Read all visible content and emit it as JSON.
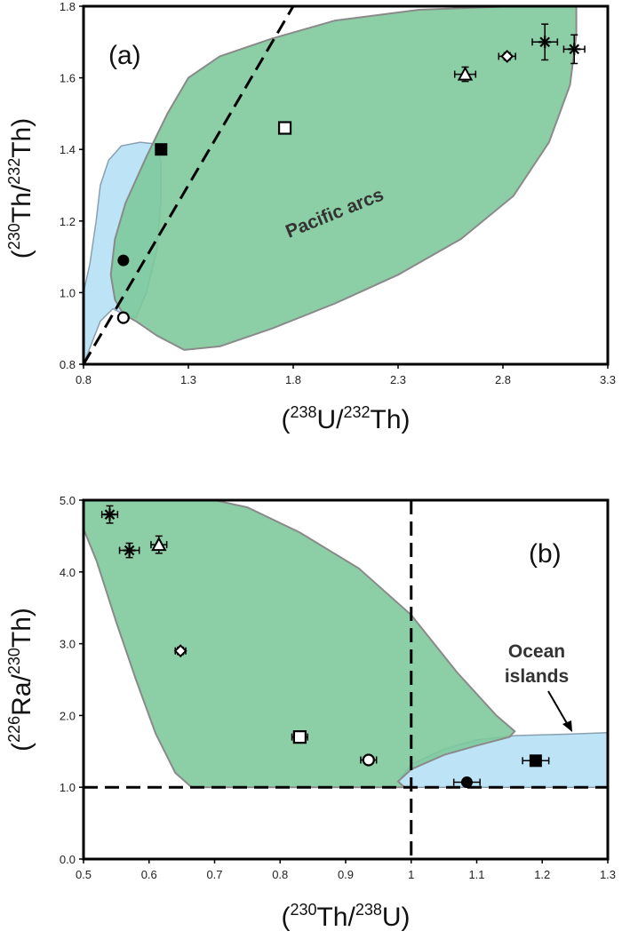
{
  "colors": {
    "arc_fill": "#7cc89a",
    "arc_stroke": "#8a8a8a",
    "ocean_fill": "#bde3f7",
    "ocean_stroke": "#8aa0b0",
    "overlap_fill": "#6bbdb4",
    "axis": "#000000"
  },
  "chart_data": [
    {
      "type": "scatter",
      "panel": "(a)",
      "xlabel": {
        "open": "(",
        "iso1": "238",
        "el1": "U/",
        "iso2": "232",
        "el2": "Th)"
      },
      "ylabel": {
        "open": "(",
        "iso1": "230",
        "el1": "Th/",
        "iso2": "232",
        "el2": "Th)"
      },
      "xlim": [
        0.8,
        3.3
      ],
      "ylim": [
        0.8,
        1.8
      ],
      "xticks": [
        "0.8",
        "1.3",
        "1.8",
        "2.3",
        "2.8",
        "3.3"
      ],
      "yticks": [
        "0.8",
        "1.0",
        "1.2",
        "1.4",
        "1.6",
        "1.8"
      ],
      "region_label": "Pacific arcs",
      "equiline": [
        [
          0.8,
          0.8
        ],
        [
          1.8,
          1.8
        ]
      ],
      "regions": {
        "arc": [
          [
            0.99,
            0.94
          ],
          [
            1.05,
            0.92
          ],
          [
            1.15,
            0.88
          ],
          [
            1.28,
            0.84
          ],
          [
            1.45,
            0.85
          ],
          [
            1.7,
            0.9
          ],
          [
            2.0,
            0.97
          ],
          [
            2.3,
            1.05
          ],
          [
            2.6,
            1.15
          ],
          [
            2.85,
            1.27
          ],
          [
            3.02,
            1.42
          ],
          [
            3.12,
            1.58
          ],
          [
            3.15,
            1.72
          ],
          [
            3.15,
            1.8
          ],
          [
            2.85,
            1.8
          ],
          [
            2.4,
            1.79
          ],
          [
            2.0,
            1.76
          ],
          [
            1.7,
            1.71
          ],
          [
            1.45,
            1.66
          ],
          [
            1.3,
            1.6
          ],
          [
            1.2,
            1.5
          ],
          [
            1.1,
            1.38
          ],
          [
            1.0,
            1.25
          ],
          [
            0.95,
            1.15
          ],
          [
            0.93,
            1.05
          ],
          [
            0.95,
            0.98
          ]
        ],
        "ocean": [
          [
            0.8,
            0.8
          ],
          [
            0.84,
            0.86
          ],
          [
            0.88,
            0.92
          ],
          [
            0.94,
            0.955
          ],
          [
            0.99,
            0.94
          ],
          [
            1.05,
            0.93
          ],
          [
            1.1,
            1.0
          ],
          [
            1.15,
            1.12
          ],
          [
            1.17,
            1.26
          ],
          [
            1.17,
            1.36
          ],
          [
            1.15,
            1.415
          ],
          [
            1.07,
            1.42
          ],
          [
            0.98,
            1.41
          ],
          [
            0.92,
            1.37
          ],
          [
            0.88,
            1.3
          ],
          [
            0.86,
            1.2
          ],
          [
            0.83,
            1.08
          ],
          [
            0.8,
            1.0
          ]
        ]
      },
      "points": [
        {
          "marker": "filled-square",
          "x": 1.17,
          "y": 1.4
        },
        {
          "marker": "open-square",
          "x": 1.76,
          "y": 1.46
        },
        {
          "marker": "filled-circle",
          "x": 0.99,
          "y": 1.09
        },
        {
          "marker": "open-circle",
          "x": 0.99,
          "y": 0.93
        },
        {
          "marker": "triangle",
          "x": 2.62,
          "y": 1.61,
          "xerr": 0.05,
          "yerr": 0.02
        },
        {
          "marker": "crossed-diamond",
          "x": 2.82,
          "y": 1.66,
          "xerr": 0.04,
          "yerr": 0.01
        },
        {
          "marker": "star",
          "x": 3.0,
          "y": 1.7,
          "xerr": 0.06,
          "yerr": 0.05
        },
        {
          "marker": "star",
          "x": 3.14,
          "y": 1.68,
          "xerr": 0.05,
          "yerr": 0.04
        }
      ]
    },
    {
      "type": "scatter",
      "panel": "(b)",
      "xlabel": {
        "open": "(",
        "iso1": "230",
        "el1": "Th/",
        "iso2": "238",
        "el2": "U)"
      },
      "ylabel": {
        "open": "(",
        "iso1": "226",
        "el1": "Ra/",
        "iso2": "230",
        "el2": "Th)"
      },
      "xlim": [
        0.5,
        1.3
      ],
      "ylim": [
        0.0,
        5.0
      ],
      "xticks": [
        "0.5",
        "0.6",
        "0.7",
        "0.8",
        "0.9",
        "1",
        "1.1",
        "1.2",
        "1.3"
      ],
      "yticks": [
        "0.0",
        "1.0",
        "2.0",
        "3.0",
        "4.0",
        "5.0"
      ],
      "region_label_line1": "Ocean",
      "region_label_line2": "islands",
      "reference_lines": {
        "y": 1.0,
        "x": 1.0
      },
      "regions": {
        "arc": [
          [
            0.5,
            4.6
          ],
          [
            0.52,
            4.15
          ],
          [
            0.55,
            3.3
          ],
          [
            0.58,
            2.5
          ],
          [
            0.61,
            1.75
          ],
          [
            0.64,
            1.2
          ],
          [
            0.665,
            1.0
          ],
          [
            0.99,
            1.0
          ],
          [
            0.98,
            1.08
          ],
          [
            1.0,
            1.25
          ],
          [
            1.05,
            1.45
          ],
          [
            1.1,
            1.58
          ],
          [
            1.15,
            1.7
          ],
          [
            1.158,
            1.78
          ],
          [
            1.13,
            2.0
          ],
          [
            1.07,
            2.6
          ],
          [
            1.0,
            3.4
          ],
          [
            0.92,
            4.05
          ],
          [
            0.83,
            4.55
          ],
          [
            0.75,
            4.9
          ],
          [
            0.7,
            5.0
          ],
          [
            0.5,
            5.0
          ]
        ],
        "ocean": [
          [
            0.98,
            1.08
          ],
          [
            0.99,
            1.0
          ],
          [
            1.3,
            1.0
          ],
          [
            1.3,
            1.76
          ],
          [
            1.24,
            1.74
          ],
          [
            1.16,
            1.72
          ],
          [
            1.1,
            1.66
          ],
          [
            1.05,
            1.53
          ],
          [
            1.0,
            1.32
          ]
        ]
      },
      "points": [
        {
          "marker": "star",
          "x": 0.54,
          "y": 4.8,
          "xerr": 0.012,
          "yerr": 0.12
        },
        {
          "marker": "star",
          "x": 0.57,
          "y": 4.3,
          "xerr": 0.015,
          "yerr": 0.1
        },
        {
          "marker": "triangle",
          "x": 0.615,
          "y": 4.38,
          "xerr": 0.012,
          "yerr": 0.12
        },
        {
          "marker": "crossed-diamond",
          "x": 0.648,
          "y": 2.9,
          "xerr": 0.008,
          "yerr": 0.05
        },
        {
          "marker": "open-square",
          "x": 0.83,
          "y": 1.7,
          "xerr": 0.012,
          "yerr": 0.05
        },
        {
          "marker": "open-circle",
          "x": 0.935,
          "y": 1.38,
          "xerr": 0.012,
          "yerr": 0.05
        },
        {
          "marker": "filled-circle",
          "x": 1.085,
          "y": 1.07,
          "xerr": 0.02,
          "yerr": 0.04
        },
        {
          "marker": "filled-square",
          "x": 1.19,
          "y": 1.37,
          "xerr": 0.02,
          "yerr": 0.04
        }
      ]
    }
  ]
}
